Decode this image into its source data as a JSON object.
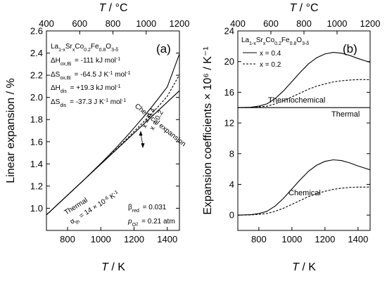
{
  "chart_data": [
    {
      "type": "line",
      "panel_label": "(a)",
      "xlabel": "T / K",
      "x2label": "T / °C",
      "ylabel": "Linear expansion / %",
      "xlim": [
        673,
        1473
      ],
      "ylim": [
        0.8,
        2.6
      ],
      "x2lim": [
        400,
        1200
      ],
      "x_ticks": [
        800,
        1000,
        1200,
        1400
      ],
      "y_ticks": [
        1.0,
        1.2,
        1.4,
        1.6,
        1.8,
        2.0,
        2.2,
        2.4,
        2.6
      ],
      "x2_ticks": [
        400,
        600,
        800,
        1000,
        1200
      ],
      "composition_lines": [
        {
          "text": "La1-xSrxCo0.2Fe0.8O3-δ"
        },
        {
          "text": "ΔHox,Bj = -111 kJ mol-1"
        },
        {
          "text": "ΔSox,Bj = -64.5 J K-1 mol-1"
        },
        {
          "text": "ΔHdis = +19.3 kJ mol-1"
        },
        {
          "text": "ΔSdis = -37.3 J K-1 mol-1"
        }
      ],
      "params": [
        {
          "text": "βred = 0.031"
        },
        {
          "text": "pO2 = 0.21 atm"
        }
      ],
      "annotations": {
        "thermal": "Thermal",
        "alpha": "αth = 14 × 10-6 K-1",
        "chemical": "Chemical  expansion",
        "x04": "x = 0.4",
        "x02": "x = 0.2"
      },
      "series": [
        {
          "name": "x = 0.4",
          "style": "solid",
          "x": [
            673,
            800,
            900,
            1000,
            1050,
            1100,
            1150,
            1200,
            1250,
            1300,
            1350,
            1400,
            1473
          ],
          "y": [
            0.94,
            1.118,
            1.258,
            1.404,
            1.48,
            1.558,
            1.64,
            1.725,
            1.812,
            1.902,
            1.997,
            2.095,
            2.392
          ]
        },
        {
          "name": "x = 0.2",
          "style": "dashed",
          "x": [
            673,
            800,
            900,
            1000,
            1050,
            1100,
            1150,
            1200,
            1250,
            1300,
            1350,
            1400,
            1473
          ],
          "y": [
            0.94,
            1.118,
            1.258,
            1.4,
            1.471,
            1.543,
            1.617,
            1.692,
            1.768,
            1.845,
            1.925,
            2.01,
            2.205
          ]
        },
        {
          "name": "thermal",
          "style": "solid",
          "x": [
            673,
            1473
          ],
          "y": [
            0.94,
            2.06
          ]
        }
      ]
    },
    {
      "type": "line",
      "panel_label": "(b)",
      "xlabel": "T / K",
      "x2label": "T / °C",
      "ylabel": "Expansion coefficients × 10⁶ / K⁻¹",
      "xlim": [
        673,
        1473
      ],
      "ylim": [
        -2,
        24
      ],
      "x2lim": [
        400,
        1200
      ],
      "x_ticks": [
        800,
        1000,
        1200,
        1400
      ],
      "y_ticks": [
        0,
        4,
        8,
        12,
        16,
        20,
        24
      ],
      "x2_ticks": [
        400,
        600,
        800,
        1000,
        1200
      ],
      "composition": "La1-xSrxCo0.2Fe0.8O3-δ",
      "legend": [
        "x = 0.4",
        "x = 0.2"
      ],
      "labels": {
        "thermochemical": "Thermochemical",
        "thermal": "Thermal",
        "chemical": "Chemical"
      },
      "series": [
        {
          "name": "x = 0.4",
          "group": "thermochemical",
          "style": "solid",
          "x": [
            673,
            750,
            800,
            850,
            900,
            950,
            1000,
            1050,
            1100,
            1150,
            1200,
            1250,
            1300,
            1350,
            1400,
            1473
          ],
          "y": [
            14.0,
            14.05,
            14.2,
            14.5,
            15.2,
            16.2,
            17.4,
            18.6,
            19.7,
            20.5,
            21.0,
            21.2,
            21.1,
            20.8,
            20.4,
            19.9
          ]
        },
        {
          "name": "x = 0.2",
          "group": "thermochemical",
          "style": "dashed",
          "x": [
            673,
            750,
            800,
            850,
            900,
            950,
            1000,
            1050,
            1100,
            1150,
            1200,
            1250,
            1300,
            1350,
            1400,
            1473
          ],
          "y": [
            14.0,
            14.02,
            14.1,
            14.2,
            14.5,
            14.9,
            15.4,
            15.9,
            16.4,
            16.8,
            17.1,
            17.35,
            17.5,
            17.6,
            17.65,
            17.65
          ]
        },
        {
          "name": "thermal",
          "group": "thermal",
          "style": "solid",
          "x": [
            673,
            1473
          ],
          "y": [
            14.0,
            14.0
          ]
        },
        {
          "name": "x = 0.4",
          "group": "chemical",
          "style": "solid",
          "x": [
            673,
            750,
            800,
            850,
            900,
            950,
            1000,
            1050,
            1100,
            1150,
            1200,
            1250,
            1300,
            1350,
            1400,
            1473
          ],
          "y": [
            0.0,
            0.05,
            0.2,
            0.5,
            1.2,
            2.2,
            3.4,
            4.6,
            5.7,
            6.5,
            7.0,
            7.2,
            7.1,
            6.8,
            6.4,
            5.9
          ]
        },
        {
          "name": "x = 0.2",
          "group": "chemical",
          "style": "dashed",
          "x": [
            673,
            750,
            800,
            850,
            900,
            950,
            1000,
            1050,
            1100,
            1150,
            1200,
            1250,
            1300,
            1350,
            1400,
            1473
          ],
          "y": [
            0.0,
            0.02,
            0.1,
            0.2,
            0.5,
            0.9,
            1.4,
            1.9,
            2.4,
            2.8,
            3.1,
            3.35,
            3.5,
            3.6,
            3.65,
            3.65
          ]
        }
      ]
    }
  ]
}
